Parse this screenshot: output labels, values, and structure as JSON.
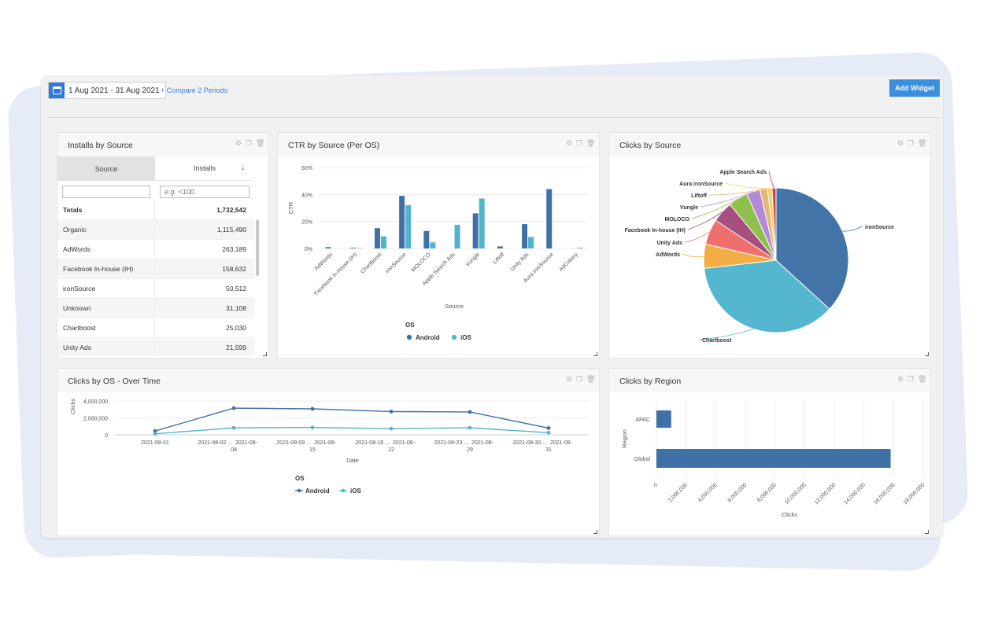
{
  "toolbar": {
    "date_range": "1 Aug 2021 - 31 Aug 2021",
    "compare_link": "+ Compare 2 Periods",
    "add_widget_label": "Add Widget"
  },
  "colors": {
    "accent": "#3b8fe0",
    "android": "#4071a6",
    "ios": "#51b4cc"
  },
  "installs": {
    "title": "Installs by Source",
    "col_source": "Source",
    "col_installs": "Installs",
    "sort_icon": "arrow-down-icon",
    "filter_placeholder": "e.g. <100",
    "totals_label": "Totals",
    "totals_value": "1,732,542",
    "rows": [
      {
        "name": "Organic",
        "value": "1,115,490"
      },
      {
        "name": "AdWords",
        "value": "263,189"
      },
      {
        "name": "Facebook In-house (IH)",
        "value": "158,632"
      },
      {
        "name": "ironSource",
        "value": "50,512"
      },
      {
        "name": "Unknown",
        "value": "31,108"
      },
      {
        "name": "Chartboost",
        "value": "25,030"
      },
      {
        "name": "Unity Ads",
        "value": "21,599"
      }
    ]
  },
  "ctr": {
    "title": "CTR by Source (Per OS)",
    "chart_data": {
      "type": "bar",
      "ylabel": "CTR",
      "xlabel": "Source",
      "ylim": [
        0,
        60
      ],
      "yticks": [
        "0%",
        "20%",
        "40%",
        "60%"
      ],
      "categories": [
        "AdWords",
        "Facebook In-house (IH)",
        "Chartboost",
        "ironSource",
        "MOLOCO",
        "Apple Search Ads",
        "Vungle",
        "Liftoff",
        "Unity Ads",
        "Aura ironSource",
        "AdColony"
      ],
      "series": [
        {
          "name": "Android",
          "values": [
            1,
            0.5,
            15,
            39,
            13,
            0,
            26,
            1.5,
            18,
            44,
            0
          ]
        },
        {
          "name": "iOS",
          "values": [
            0,
            0.3,
            9,
            32,
            4.5,
            17.5,
            37,
            0,
            8.5,
            0,
            0.5
          ]
        }
      ],
      "legend_title": "OS",
      "legend_position": "bottom"
    }
  },
  "clicks_source": {
    "title": "Clicks by Source",
    "chart_data": {
      "type": "pie",
      "categories": [
        "ironSource",
        "Chartboost",
        "AdWords",
        "Unity Ads",
        "Facebook In-house (IH)",
        "MOLOCO",
        "Vungle",
        "Liftoff",
        "Aura ironSource",
        "Apple Search Ads"
      ],
      "values": [
        36.8,
        36.4,
        5.4,
        5.7,
        4.7,
        4.4,
        3.0,
        1.7,
        1.0,
        0.9
      ],
      "colors": [
        "#4274a8",
        "#54b6cf",
        "#f2ae44",
        "#ef6f6c",
        "#a7507f",
        "#8fbf4d",
        "#b48ad7",
        "#e3b77a",
        "#f1d35e",
        "#d94646"
      ]
    }
  },
  "clicks_os_time": {
    "title": "Clicks by OS - Over Time",
    "chart_data": {
      "type": "line",
      "xlabel": "Date",
      "ylabel": "Clicks",
      "ylim": [
        0,
        4000000
      ],
      "yticks": [
        "0",
        "2,000,000",
        "4,000,000"
      ],
      "x": [
        "2021-08-01",
        "2021-08-02 ... 2021-08-08",
        "2021-08-09 ... 2021-08-15",
        "2021-08-16 ... 2021-08-22",
        "2021-08-23 ... 2021-08-29",
        "2021-08-30 ... 2021-08-31"
      ],
      "xtick_lines": [
        [
          "2021-08-01"
        ],
        [
          "2021-08-02 ...",
          "2021-08-",
          "08"
        ],
        [
          "2021-08-09 ...",
          "2021-08-",
          "15"
        ],
        [
          "2021-08-16 ...",
          "2021-08-",
          "22"
        ],
        [
          "2021-08-23 ...",
          "2021-08-",
          "29"
        ],
        [
          "2021-08-30 ...",
          "2021-08-",
          "31"
        ]
      ],
      "series": [
        {
          "name": "Android",
          "values": [
            450000,
            3150000,
            3070000,
            2750000,
            2700000,
            800000
          ]
        },
        {
          "name": "iOS",
          "values": [
            120000,
            820000,
            870000,
            730000,
            830000,
            250000
          ]
        }
      ],
      "legend_title": "OS",
      "legend_position": "bottom"
    }
  },
  "clicks_region": {
    "title": "Clicks by Region",
    "chart_data": {
      "type": "bar",
      "orientation": "horizontal",
      "xlabel": "Clicks",
      "ylabel": "Region",
      "xlim": [
        0,
        18000000
      ],
      "xticks": [
        "0",
        "2,000,000",
        "4,000,000",
        "6,000,000",
        "8,000,000",
        "10,000,000",
        "12,000,000",
        "14,000,000",
        "16,000,000",
        "18,000,000"
      ],
      "categories": [
        "APAC",
        "Global"
      ],
      "values": [
        1000000,
        15800000
      ]
    }
  }
}
